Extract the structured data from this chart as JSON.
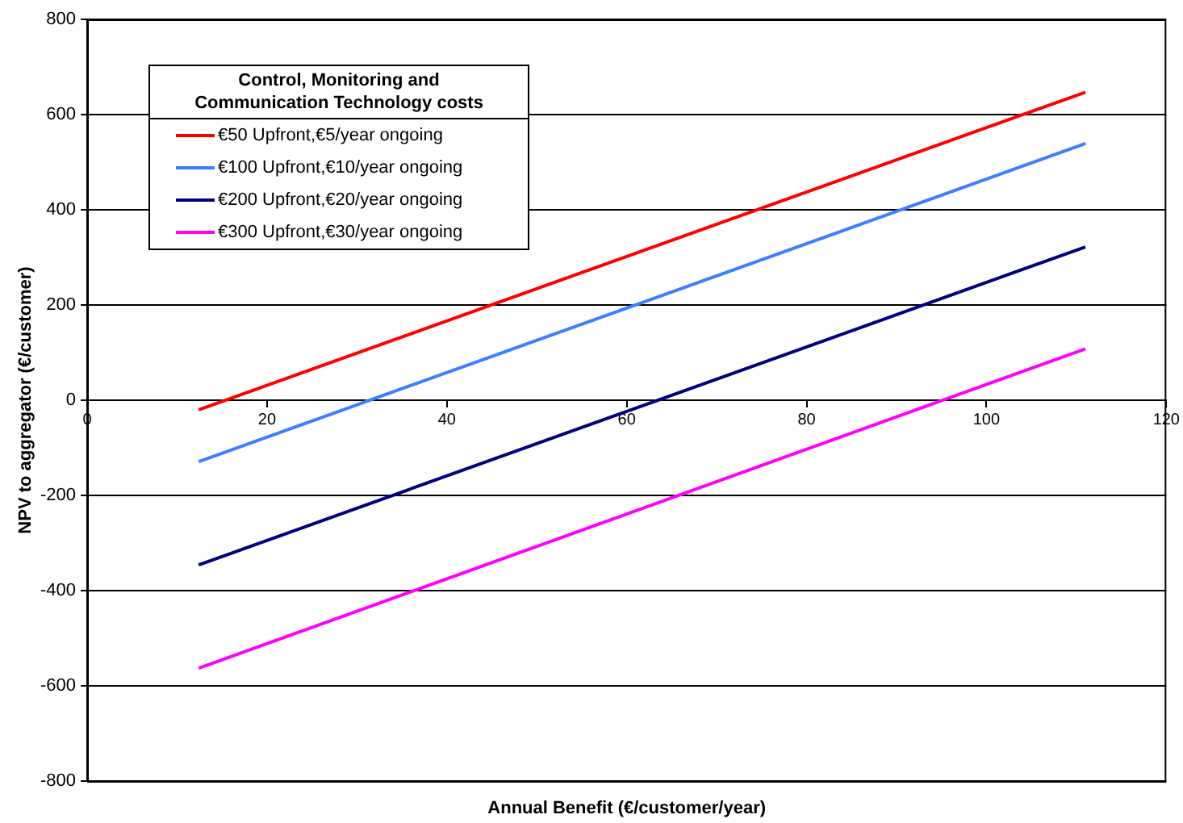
{
  "chart_data": {
    "type": "line",
    "xlabel": "Annual Benefit (€/customer/year)",
    "ylabel": "NPV to aggregator (€/customer)",
    "legend_title": "Control, Monitoring and Communication Technology costs",
    "xlim": [
      0,
      120
    ],
    "xticks": [
      0,
      20,
      40,
      60,
      80,
      100,
      120
    ],
    "ylim": [
      -800,
      800
    ],
    "yticks": [
      -800,
      -600,
      -400,
      -200,
      0,
      200,
      400,
      600,
      800
    ],
    "grid": "y",
    "legend": "top left",
    "marker": "none",
    "line_style": "solid",
    "x": [
      12.4,
      111
    ],
    "series": [
      {
        "name": "€50 Upfront,€5/year ongoing",
        "color": "#ff0000",
        "values": [
          -20,
          647
        ]
      },
      {
        "name": "€100 Upfront,€10/year ongoing",
        "color": "#3d7fff",
        "values": [
          -129,
          539
        ]
      },
      {
        "name": "€200 Upfront,€20/year ongoing",
        "color": "#000080",
        "values": [
          -346,
          322
        ]
      },
      {
        "name": "€300 Upfront,€30/year ongoing",
        "color": "#ff00ff",
        "values": [
          -563,
          108
        ]
      }
    ]
  }
}
